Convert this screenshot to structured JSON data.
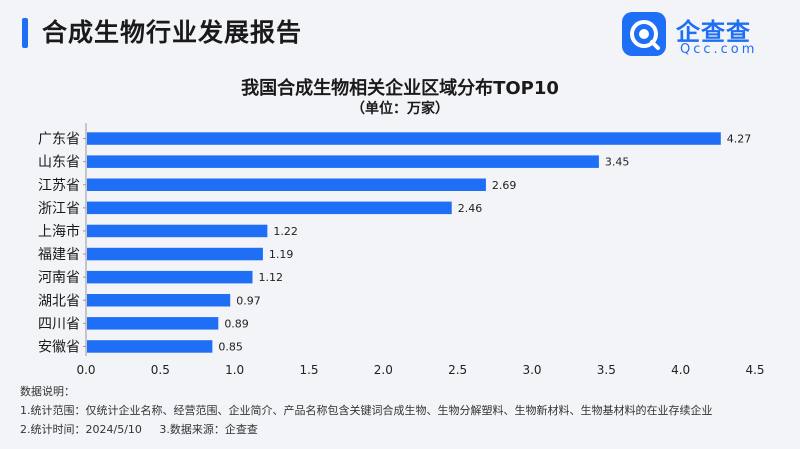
{
  "header": {
    "title": "合成生物行业发展报告"
  },
  "logo": {
    "name": "企查查",
    "domain": "Qcc.com",
    "brand_color": "#1e6ff5"
  },
  "chart_data": {
    "type": "bar",
    "orientation": "horizontal",
    "title": "我国合成生物相关企业区域分布TOP10",
    "subtitle": "（单位：万家）",
    "categories": [
      "广东省",
      "山东省",
      "江苏省",
      "浙江省",
      "上海市",
      "福建省",
      "河南省",
      "湖北省",
      "四川省",
      "安徽省"
    ],
    "values": [
      4.27,
      3.45,
      2.69,
      2.46,
      1.22,
      1.19,
      1.12,
      0.97,
      0.89,
      0.85
    ],
    "value_labels": [
      "4.27",
      "3.45",
      "2.69",
      "2.46",
      "1.22",
      "1.19",
      "1.12",
      "0.97",
      "0.89",
      "0.85"
    ],
    "xlim": [
      0,
      4.5
    ],
    "x_ticks": [
      "0.0",
      "0.5",
      "1.0",
      "1.5",
      "2.0",
      "2.5",
      "3.0",
      "3.5",
      "4.0",
      "4.5"
    ],
    "bar_color": "#1e6ff5",
    "grid": false,
    "legend": "none"
  },
  "notes": {
    "heading": "数据说明：",
    "scope": "1.统计范围：仅统计企业名称、经营范围、企业简介、产品名称包含关键词合成生物、生物分解塑料、生物新材料、生物基材料的在业存续企业",
    "time": "2.统计时间：2024/5/10",
    "source": "3.数据来源：企查查"
  }
}
